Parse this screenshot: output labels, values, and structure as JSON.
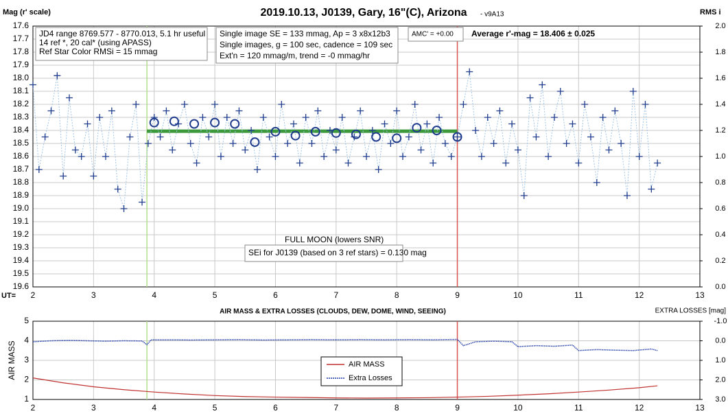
{
  "chart_data": [
    {
      "type": "scatter",
      "title": "2019.10.13, J0139, Gary, 16\"(C), Arizona",
      "subtitle": " - v9A13",
      "y_label": "Mag (r' scale)",
      "y2_label": "RMS i",
      "x_prefix": "UT=",
      "xlim": [
        2,
        13
      ],
      "xticks": [
        2,
        3,
        4,
        5,
        6,
        7,
        8,
        9,
        10,
        11,
        12,
        13
      ],
      "ylim": [
        17.6,
        19.6
      ],
      "y_inverted": true,
      "yticks": [
        17.6,
        17.7,
        17.8,
        17.9,
        {
          "value": 18,
          "label": "18.0"
        },
        18.1,
        18.2,
        18.3,
        18.4,
        18.5,
        18.6,
        18.7,
        18.8,
        18.9,
        {
          "value": 19,
          "label": "19.0"
        },
        19.1,
        19.2,
        19.3,
        19.4,
        19.5,
        19.6
      ],
      "y2lim": [
        0,
        2
      ],
      "y2ticks": [
        {
          "value": 0,
          "label": "0.0"
        },
        0.2,
        0.4,
        0.6,
        0.8,
        {
          "value": 1,
          "label": "1.0"
        },
        1.2,
        1.4,
        1.6,
        1.8,
        {
          "value": 2,
          "label": "2.0"
        }
      ],
      "grid": true,
      "vertical_lines": [
        {
          "x": 3.88,
          "color": "#b5de8c"
        },
        {
          "x": 9.0,
          "color": "#d9534f"
        }
      ],
      "average_line": {
        "value": 18.406,
        "x": [
          3.88,
          9.0
        ],
        "color": "#3c9a3c"
      },
      "series": [
        {
          "color": "#1f3b8c",
          "marker": "plus",
          "line_color": "#9fc3e7",
          "x": [
            2.0,
            2.1,
            2.2,
            2.3,
            2.4,
            2.5,
            2.6,
            2.7,
            2.8,
            2.9,
            3.0,
            3.1,
            3.2,
            3.3,
            3.4,
            3.5,
            3.6,
            3.7,
            3.8,
            3.9,
            4.0,
            4.1,
            4.2,
            4.3,
            4.4,
            4.5,
            4.6,
            4.7,
            4.8,
            4.9,
            5.0,
            5.1,
            5.2,
            5.3,
            5.4,
            5.5,
            5.6,
            5.7,
            5.8,
            5.9,
            6.0,
            6.1,
            6.2,
            6.3,
            6.4,
            6.5,
            6.6,
            6.7,
            6.8,
            6.9,
            7.0,
            7.1,
            7.2,
            7.3,
            7.4,
            7.5,
            7.6,
            7.7,
            7.8,
            7.9,
            8.0,
            8.1,
            8.2,
            8.3,
            8.4,
            8.5,
            8.6,
            8.7,
            8.8,
            8.9,
            9.0,
            9.1,
            9.2,
            9.3,
            9.4,
            9.5,
            9.6,
            9.7,
            9.8,
            9.9,
            10.0,
            10.1,
            10.2,
            10.3,
            10.4,
            10.5,
            10.6,
            10.7,
            10.8,
            10.9,
            11.0,
            11.1,
            11.2,
            11.3,
            11.4,
            11.5,
            11.6,
            11.7,
            11.8,
            11.9,
            12.0,
            12.1,
            12.2,
            12.3
          ],
          "values": [
            18.05,
            18.7,
            18.45,
            18.25,
            17.98,
            18.75,
            18.15,
            18.55,
            18.6,
            18.35,
            18.75,
            18.3,
            18.6,
            18.25,
            18.85,
            19.0,
            18.45,
            18.2,
            18.95,
            18.5,
            18.3,
            18.45,
            18.25,
            18.55,
            18.35,
            18.2,
            18.5,
            18.65,
            18.3,
            18.45,
            18.2,
            18.6,
            18.3,
            18.5,
            18.25,
            18.55,
            18.4,
            18.7,
            18.3,
            18.45,
            18.6,
            18.2,
            18.5,
            18.35,
            18.65,
            18.3,
            18.5,
            18.25,
            18.6,
            18.4,
            18.55,
            18.3,
            18.65,
            18.45,
            18.25,
            18.6,
            18.4,
            18.7,
            18.35,
            18.5,
            18.25,
            18.6,
            18.45,
            18.2,
            18.55,
            18.35,
            18.65,
            18.3,
            18.5,
            18.6,
            18.45,
            18.2,
            17.95,
            18.4,
            18.6,
            18.3,
            18.5,
            18.25,
            18.65,
            18.35,
            18.55,
            18.9,
            18.15,
            18.45,
            18.05,
            18.6,
            18.3,
            18.1,
            18.5,
            18.35,
            18.65,
            18.2,
            18.45,
            18.8,
            18.3,
            18.55,
            18.25,
            18.5,
            18.9,
            18.1,
            18.6,
            18.2,
            18.85,
            18.65
          ]
        },
        {
          "color": "#1f3b8c",
          "marker": "circle",
          "x": [
            4.0,
            4.33,
            4.66,
            5.0,
            5.33,
            5.66,
            6.0,
            6.33,
            6.66,
            7.0,
            7.33,
            7.66,
            8.0,
            8.33,
            8.66,
            9.0
          ],
          "values": [
            18.34,
            18.33,
            18.35,
            18.34,
            18.35,
            18.49,
            18.41,
            18.44,
            18.41,
            18.42,
            18.43,
            18.45,
            18.46,
            18.38,
            18.4,
            18.45
          ]
        }
      ],
      "annotations": [
        {
          "lines": [
            "JD4 range 8769.577 - 8770.013, 5.1 hr useful",
            "14 ref *, 20 cal* (using APASS)",
            "Ref Star Color RMSi = 15 mmag"
          ]
        },
        {
          "lines": [
            "Single image SE = 133 mmag, Ap = 3 x8x12b3",
            "Single images, g = 100 sec, cadence = 109 sec",
            "Ext'n = 120 mmag/m, trend = -0 mmag/hr"
          ]
        },
        {
          "lines": [
            "AMC' = +0.00"
          ]
        },
        {
          "lines": [
            "Average r'-mag =  18.406 ± 0.025"
          ]
        },
        {
          "lines": [
            "FULL MOON (lowers SNR)"
          ]
        },
        {
          "lines": [
            "SEi for J0139 (based on 3 ref stars) = 0.130 mag"
          ]
        }
      ]
    },
    {
      "type": "line",
      "title": "AIR MASS & EXTRA LOSSES (CLOUDS, DEW, DOME, WIND, SEEING)",
      "y_label": "AIR MASS",
      "y2_label": "EXTRA LOSSES [mag]",
      "xlim": [
        2,
        13
      ],
      "xticks": [
        2,
        3,
        4,
        5,
        6,
        7,
        8,
        9,
        10,
        11,
        12,
        13
      ],
      "ylim": [
        1,
        5
      ],
      "yticks": [
        1,
        2,
        3,
        4,
        5
      ],
      "y2lim": [
        -1,
        3
      ],
      "y2_inverted": true,
      "y2ticks": [
        {
          "value": -1,
          "label": "-1.0"
        },
        {
          "value": 0,
          "label": "0.0"
        },
        {
          "value": 1,
          "label": "1.0"
        },
        {
          "value": 2,
          "label": "2.0"
        },
        {
          "value": 3,
          "label": "3.0"
        }
      ],
      "grid": true,
      "vertical_lines": [
        {
          "x": 3.88,
          "color": "#b5de8c"
        },
        {
          "x": 9.0,
          "color": "#d9534f"
        }
      ],
      "series": [
        {
          "name": "AIR MASS",
          "color": "#c0302f",
          "axis": "y",
          "x": [
            2,
            2.5,
            3,
            3.5,
            4,
            4.5,
            5,
            5.5,
            6,
            6.5,
            7,
            7.5,
            8,
            8.5,
            9,
            9.5,
            10,
            10.5,
            11,
            11.5,
            12,
            12.3
          ],
          "values": [
            2.1,
            1.85,
            1.65,
            1.5,
            1.38,
            1.28,
            1.2,
            1.15,
            1.12,
            1.1,
            1.08,
            1.07,
            1.08,
            1.09,
            1.12,
            1.16,
            1.22,
            1.29,
            1.38,
            1.48,
            1.6,
            1.7
          ]
        },
        {
          "name": "Extra Losses",
          "color": "#1f3ba8",
          "axis": "y2",
          "dotted": true,
          "x": [
            2,
            2.3,
            2.6,
            2.9,
            3.2,
            3.5,
            3.8,
            3.88,
            3.95,
            4.3,
            4.6,
            5,
            5.4,
            5.8,
            6.2,
            6.6,
            7,
            7.4,
            7.8,
            8.2,
            8.6,
            9,
            9.1,
            9.3,
            9.6,
            9.9,
            10,
            10.3,
            10.6,
            10.9,
            11,
            11.3,
            11.6,
            11.9,
            12.2,
            12.3
          ],
          "values": [
            0.05,
            0.0,
            -0.02,
            0.0,
            0.02,
            0.0,
            0.01,
            0.2,
            -0.05,
            -0.05,
            -0.04,
            -0.05,
            -0.06,
            -0.04,
            -0.05,
            -0.06,
            -0.05,
            -0.06,
            -0.05,
            -0.06,
            -0.05,
            -0.07,
            0.25,
            0.05,
            0.02,
            0.05,
            0.3,
            0.25,
            0.28,
            0.22,
            0.5,
            0.45,
            0.48,
            0.5,
            0.42,
            0.5
          ]
        }
      ]
    }
  ]
}
